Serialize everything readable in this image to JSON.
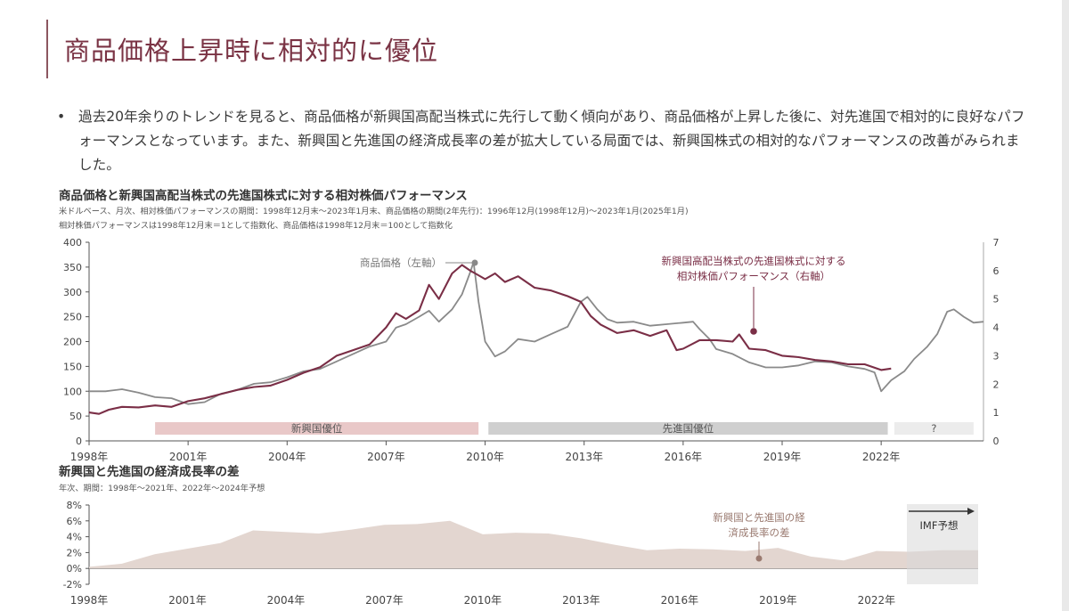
{
  "page": {
    "title": "商品価格上昇時に相対的に優位",
    "bullet_marker": "•",
    "bullet_text": "過去20年余りのトレンドを見ると、商品価格が新興国高配当株式に先行して動く傾向があり、商品価格が上昇した後に、対先進国で相対的に良好なパフォーマンスとなっています。また、新興国と先進国の経済成長率の差が拡大している局面では、新興国株式の相対的なパフォーマンスの改善がみられました。"
  },
  "chart_data": [
    {
      "type": "line",
      "title": "商品価格と新興国高配当株式の先進国株式に対する相対株価パフォーマンス",
      "subtitle": [
        "米ドルベース、月次、相対株価パフォーマンスの期間：1998年12月末～2023年1月末、商品価格の期間(2年先行)：1996年12月(1998年12月)～2023年1月(2025年1月)",
        "相対株価パフォーマンスは1998年12月末＝1として指数化、商品価格は1998年12月末＝100として指数化"
      ],
      "x_ticks": [
        "1998年",
        "2001年",
        "2004年",
        "2007年",
        "2010年",
        "2013年",
        "2016年",
        "2019年",
        "2022年"
      ],
      "x_tick_values": [
        1998,
        2001,
        2004,
        2007,
        2010,
        2013,
        2016,
        2019,
        2022
      ],
      "xlim": [
        1998,
        2025.1
      ],
      "ylim_left": [
        0,
        400
      ],
      "y_ticks_left": [
        0,
        50,
        100,
        150,
        200,
        250,
        300,
        350,
        400
      ],
      "ylim_right": [
        0,
        7
      ],
      "y_ticks_right": [
        0,
        1,
        2,
        3,
        4,
        5,
        6,
        7
      ],
      "grid": false,
      "colors": {
        "commodity": "#8a8a8a",
        "relative": "#7a2e46"
      },
      "annotations": {
        "commodity": "商品価格（左軸）",
        "relative_line1": "新興国高配当株式の先進国株式に対する",
        "relative_line2": "相対株価パフォーマンス（右軸）"
      },
      "bands": [
        {
          "label": "新興国優位",
          "from": 2000,
          "to": 2009.8,
          "color": "#e9c8c8"
        },
        {
          "label": "先進国優位",
          "from": 2010.1,
          "to": 2022.2,
          "color": "#cfcfcf"
        },
        {
          "label": "?",
          "from": 2022.4,
          "to": 2024.8,
          "color": "#ececec"
        }
      ],
      "series": [
        {
          "key": "commodity",
          "axis": "left",
          "points": [
            [
              1998,
              100
            ],
            [
              1998.5,
              100
            ],
            [
              1999,
              104
            ],
            [
              1999.5,
              97
            ],
            [
              2000,
              88
            ],
            [
              2000.5,
              86
            ],
            [
              2001,
              74
            ],
            [
              2001.5,
              78
            ],
            [
              2002,
              95
            ],
            [
              2002.5,
              103
            ],
            [
              2003,
              115
            ],
            [
              2003.5,
              118
            ],
            [
              2004,
              128
            ],
            [
              2004.5,
              140
            ],
            [
              2005,
              145
            ],
            [
              2005.5,
              160
            ],
            [
              2006,
              175
            ],
            [
              2006.5,
              190
            ],
            [
              2007,
              200
            ],
            [
              2007.3,
              228
            ],
            [
              2007.6,
              235
            ],
            [
              2008,
              250
            ],
            [
              2008.3,
              262
            ],
            [
              2008.6,
              240
            ],
            [
              2009,
              265
            ],
            [
              2009.3,
              295
            ],
            [
              2009.55,
              340
            ],
            [
              2009.65,
              360
            ],
            [
              2009.8,
              280
            ],
            [
              2010,
              200
            ],
            [
              2010.3,
              170
            ],
            [
              2010.6,
              180
            ],
            [
              2011,
              205
            ],
            [
              2011.5,
              200
            ],
            [
              2012,
              215
            ],
            [
              2012.5,
              230
            ],
            [
              2012.9,
              280
            ],
            [
              2013.1,
              290
            ],
            [
              2013.4,
              265
            ],
            [
              2013.7,
              245
            ],
            [
              2014,
              238
            ],
            [
              2014.5,
              240
            ],
            [
              2015,
              232
            ],
            [
              2015.5,
              235
            ],
            [
              2016,
              238
            ],
            [
              2016.3,
              240
            ],
            [
              2016.5,
              225
            ],
            [
              2016.8,
              205
            ],
            [
              2017,
              185
            ],
            [
              2017.5,
              175
            ],
            [
              2018,
              158
            ],
            [
              2018.5,
              148
            ],
            [
              2019,
              148
            ],
            [
              2019.5,
              152
            ],
            [
              2020,
              160
            ],
            [
              2020.5,
              158
            ],
            [
              2021,
              150
            ],
            [
              2021.5,
              145
            ],
            [
              2021.8,
              138
            ],
            [
              2022,
              100
            ],
            [
              2022.3,
              122
            ],
            [
              2022.7,
              140
            ],
            [
              2023,
              165
            ],
            [
              2023.4,
              190
            ],
            [
              2023.7,
              215
            ],
            [
              2024,
              260
            ],
            [
              2024.2,
              265
            ],
            [
              2024.5,
              250
            ],
            [
              2024.8,
              238
            ],
            [
              2025.1,
              240
            ]
          ]
        },
        {
          "key": "relative",
          "axis": "right",
          "points": [
            [
              1998,
              1
            ],
            [
              1998.3,
              0.95
            ],
            [
              1998.6,
              1.1
            ],
            [
              1999,
              1.2
            ],
            [
              1999.5,
              1.18
            ],
            [
              2000,
              1.25
            ],
            [
              2000.5,
              1.2
            ],
            [
              2001,
              1.4
            ],
            [
              2001.5,
              1.5
            ],
            [
              2002,
              1.65
            ],
            [
              2002.5,
              1.8
            ],
            [
              2003,
              1.9
            ],
            [
              2003.5,
              1.95
            ],
            [
              2004,
              2.15
            ],
            [
              2004.5,
              2.4
            ],
            [
              2005,
              2.6
            ],
            [
              2005.5,
              3.0
            ],
            [
              2006,
              3.2
            ],
            [
              2006.5,
              3.4
            ],
            [
              2007,
              4.0
            ],
            [
              2007.3,
              4.5
            ],
            [
              2007.6,
              4.3
            ],
            [
              2008,
              4.6
            ],
            [
              2008.3,
              5.5
            ],
            [
              2008.6,
              5.0
            ],
            [
              2009,
              5.9
            ],
            [
              2009.3,
              6.2
            ],
            [
              2009.55,
              6.0
            ],
            [
              2009.7,
              5.9
            ],
            [
              2010,
              5.7
            ],
            [
              2010.3,
              5.9
            ],
            [
              2010.6,
              5.6
            ],
            [
              2011,
              5.8
            ],
            [
              2011.5,
              5.4
            ],
            [
              2012,
              5.3
            ],
            [
              2012.5,
              5.1
            ],
            [
              2012.9,
              4.9
            ],
            [
              2013.2,
              4.4
            ],
            [
              2013.5,
              4.1
            ],
            [
              2014,
              3.8
            ],
            [
              2014.5,
              3.9
            ],
            [
              2015,
              3.7
            ],
            [
              2015.5,
              3.9
            ],
            [
              2015.8,
              3.2
            ],
            [
              2016,
              3.25
            ],
            [
              2016.5,
              3.55
            ],
            [
              2017,
              3.55
            ],
            [
              2017.5,
              3.5
            ],
            [
              2017.7,
              3.75
            ],
            [
              2018,
              3.25
            ],
            [
              2018.5,
              3.2
            ],
            [
              2019,
              3.0
            ],
            [
              2019.5,
              2.95
            ],
            [
              2020,
              2.85
            ],
            [
              2020.5,
              2.8
            ],
            [
              2021,
              2.7
            ],
            [
              2021.5,
              2.7
            ],
            [
              2022,
              2.5
            ],
            [
              2022.3,
              2.55
            ]
          ]
        }
      ]
    },
    {
      "type": "area",
      "title": "新興国と先進国の経済成長率の差",
      "subtitle": "年次、期間：1998年～2021年、2022年～2024年予想",
      "x_ticks": [
        "1998年",
        "2001年",
        "2004年",
        "2007年",
        "2010年",
        "2013年",
        "2016年",
        "2019年",
        "2022年"
      ],
      "x_tick_values": [
        1998,
        2001,
        2004,
        2007,
        2010,
        2013,
        2016,
        2019,
        2022
      ],
      "xlim": [
        1998,
        2025.1
      ],
      "ylim": [
        -2,
        8
      ],
      "y_ticks": [
        "-2%",
        "0%",
        "2%",
        "4%",
        "6%",
        "8%"
      ],
      "y_tick_values": [
        -2,
        0,
        2,
        4,
        6,
        8
      ],
      "color": "#e3d6d0",
      "annotation_line1": "新興国と先進国の経",
      "annotation_line2": "済成長率の差",
      "forecast_label": "IMF予想",
      "forecast_from": 2022.0,
      "points": [
        [
          1998,
          0.2
        ],
        [
          1999,
          0.6
        ],
        [
          2000,
          1.8
        ],
        [
          2001,
          2.5
        ],
        [
          2002,
          3.2
        ],
        [
          2003,
          4.8
        ],
        [
          2004,
          4.6
        ],
        [
          2005,
          4.4
        ],
        [
          2006,
          4.9
        ],
        [
          2007,
          5.5
        ],
        [
          2008,
          5.6
        ],
        [
          2009,
          6.0
        ],
        [
          2010,
          4.3
        ],
        [
          2011,
          4.5
        ],
        [
          2012,
          4.4
        ],
        [
          2013,
          3.8
        ],
        [
          2014,
          3.0
        ],
        [
          2015,
          2.3
        ],
        [
          2016,
          2.5
        ],
        [
          2017,
          2.4
        ],
        [
          2018,
          2.2
        ],
        [
          2019,
          2.6
        ],
        [
          2020,
          1.5
        ],
        [
          2021,
          1.0
        ],
        [
          2022,
          2.2
        ],
        [
          2023,
          2.1
        ],
        [
          2024,
          2.3
        ],
        [
          2025.1,
          2.3
        ]
      ]
    }
  ]
}
